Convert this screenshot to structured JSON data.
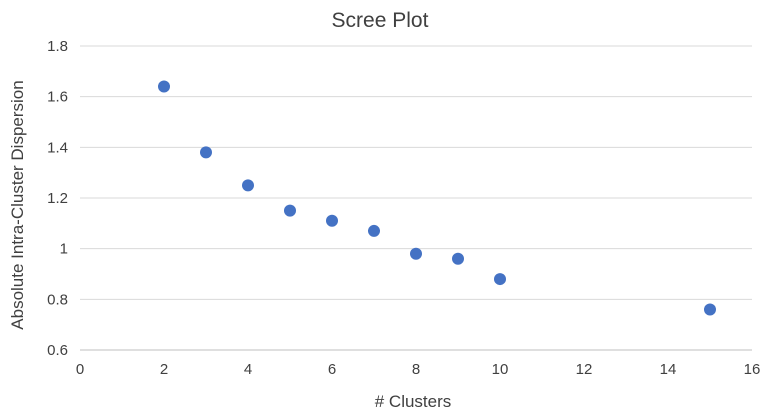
{
  "chart_data": {
    "type": "scatter",
    "title": "Scree Plot",
    "xlabel": "# Clusters",
    "ylabel": "Absolute Intra-Cluster Dispersion",
    "xlim": [
      0,
      16
    ],
    "ylim": [
      0.6,
      1.8
    ],
    "x_ticks": [
      0,
      2,
      4,
      6,
      8,
      10,
      12,
      14,
      16
    ],
    "x_tick_labels": [
      "0",
      "2",
      "4",
      "6",
      "8",
      "10",
      "12",
      "14",
      "16"
    ],
    "y_ticks": [
      0.6,
      0.8,
      1.0,
      1.2,
      1.4,
      1.6,
      1.8
    ],
    "y_tick_labels": [
      "0.6",
      "0.8",
      "1",
      "1.2",
      "1.4",
      "1.6",
      "1.8"
    ],
    "grid": "horizontal",
    "marker_color": "#4472c4",
    "series": [
      {
        "x": [
          2,
          3,
          4,
          5,
          6,
          7,
          8,
          9,
          10,
          15
        ],
        "y": [
          1.64,
          1.38,
          1.25,
          1.15,
          1.11,
          1.07,
          0.98,
          0.96,
          0.88,
          0.76
        ]
      }
    ]
  }
}
